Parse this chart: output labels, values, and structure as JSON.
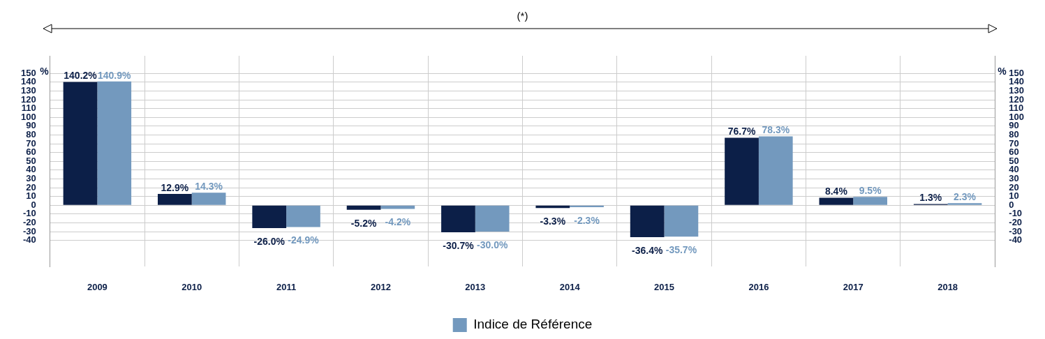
{
  "chart_data": {
    "type": "bar",
    "annotations": [
      "(*)"
    ],
    "ylabel": "%",
    "y2label": "%",
    "categories": [
      "2009",
      "2010",
      "2011",
      "2012",
      "2013",
      "2014",
      "2015",
      "2016",
      "2017",
      "2018"
    ],
    "series": [
      {
        "color": "#0c1f48",
        "values": [
          140.2,
          12.9,
          -26.0,
          -5.2,
          -30.7,
          -3.3,
          -36.4,
          76.7,
          8.4,
          1.3
        ],
        "value_labels": [
          "140.2%",
          "12.9%",
          "-26.0%",
          "-5.2%",
          "-30.7%",
          "-3.3%",
          "-36.4%",
          "76.7%",
          "8.4%",
          "1.3%"
        ]
      },
      {
        "name": "Indice de Référence",
        "color": "#7399be",
        "values": [
          140.9,
          14.3,
          -24.9,
          -4.2,
          -30.0,
          -2.3,
          -35.7,
          78.3,
          9.5,
          2.3
        ],
        "value_labels": [
          "140.9%",
          "14.3%",
          "-24.9%",
          "-4.2%",
          "-30.0%",
          "-2.3%",
          "-35.7%",
          "78.3%",
          "9.5%",
          "2.3%"
        ]
      }
    ],
    "ylim": [
      -70,
      170
    ],
    "yticks": [
      -40,
      -30,
      -20,
      -10,
      0,
      10,
      20,
      30,
      40,
      50,
      60,
      70,
      80,
      90,
      100,
      110,
      120,
      130,
      140,
      150
    ],
    "y2lim": [
      -70,
      170
    ],
    "y2ticks": [
      -40,
      -30,
      -20,
      -10,
      0,
      10,
      20,
      30,
      40,
      50,
      60,
      70,
      80,
      90,
      100,
      110,
      120,
      130,
      140,
      150
    ],
    "grid": true,
    "legend": "bottom"
  }
}
